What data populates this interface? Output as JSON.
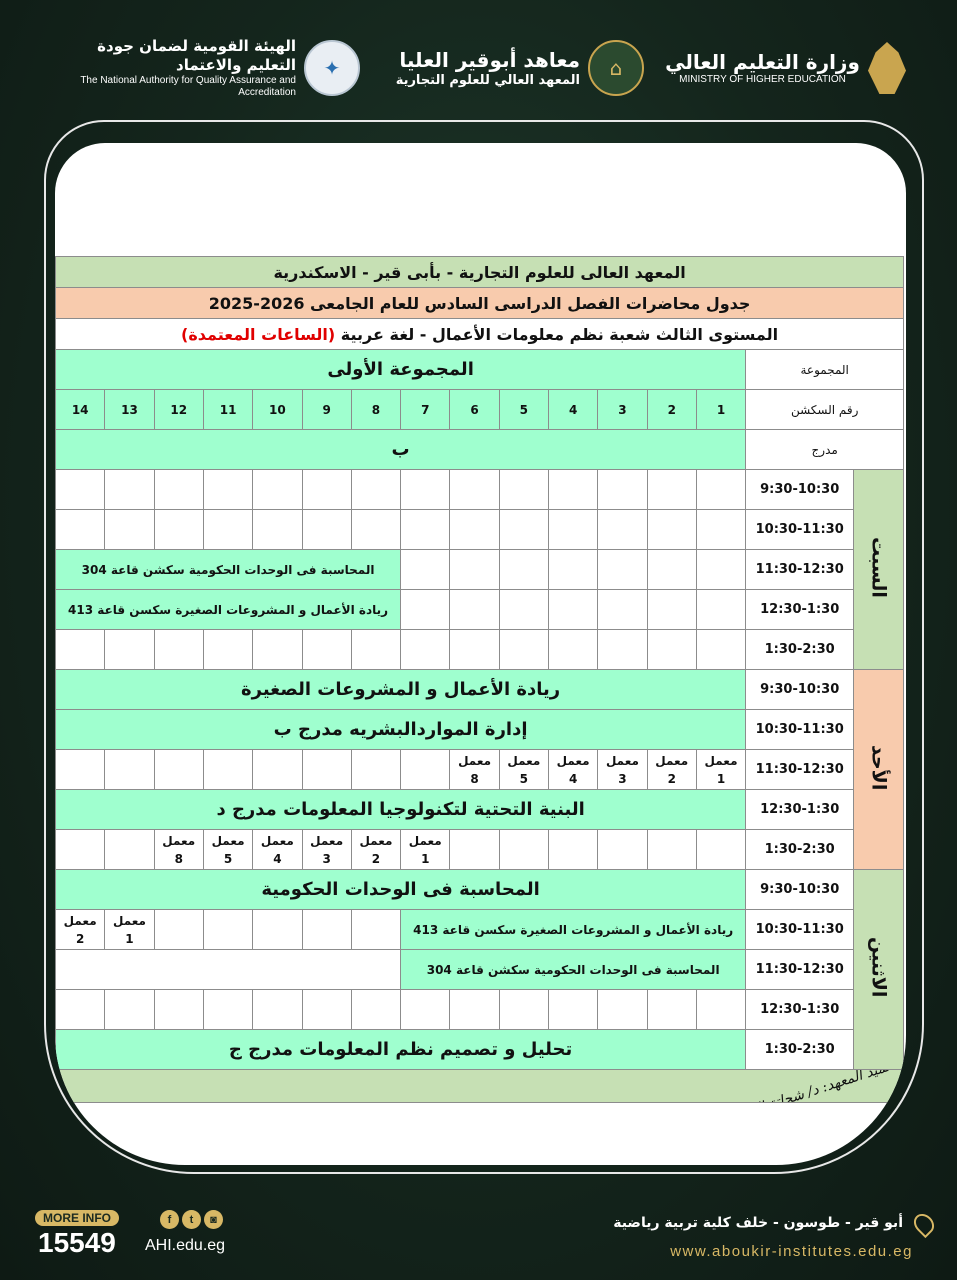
{
  "header": {
    "nqaa_ar": "الهيئة القومية لضمان جودة التعليم والاعتماد",
    "nqaa_en": "The National Authority for Quality Assurance and Accreditation",
    "institute_ar": "معاهد أبوقير العليا",
    "institute_sub": "المعهد العالي للعلوم التجارية",
    "ministry_ar": "وزارة التعليم العالي",
    "ministry_en": "MINISTRY OF HIGHER EDUCATION"
  },
  "titles": {
    "line1": "المعهد العالى للعلوم التجارية - بأبى قير - الاسكندرية",
    "line2": "جدول محاضرات الفصل الدراسى السادس  للعام الجامعى 2026-2025",
    "line3": "المستوى الثالث  شعبة نظم معلومات الأعمال -  لغة عربية ",
    "line3_red": "(الساعات المعتمدة)"
  },
  "table": {
    "group_label": "المجموعة",
    "group_value": "المجموعة الأولى",
    "section_label": "رقم السكشن",
    "sections": [
      "1",
      "2",
      "3",
      "4",
      "5",
      "6",
      "7",
      "8",
      "9",
      "10",
      "11",
      "12",
      "13",
      "14"
    ],
    "hall_label": "مدرج",
    "hall_value": "ب",
    "days": [
      {
        "name": "السبت",
        "color": "#c6e0b4",
        "rows": [
          {
            "time": "9:30-10:30",
            "cells": [
              {
                "e": 14
              }
            ]
          },
          {
            "time": "10:30-11:30",
            "cells": [
              {
                "e": 14
              }
            ]
          },
          {
            "time": "11:30-12:30",
            "cells": [
              {
                "e": 7
              },
              {
                "span": 7,
                "text": "المحاسبة فى الوحدات الحكومية  سكشن قاعة 304",
                "size": "sm"
              }
            ]
          },
          {
            "time": "12:30-1:30",
            "cells": [
              {
                "e": 7
              },
              {
                "span": 7,
                "text": "ريادة الأعمال و المشروعات الصغيرة    سكسن قاعة 413",
                "size": "sm"
              }
            ]
          },
          {
            "time": "1:30-2:30",
            "cells": [
              {
                "e": 14
              }
            ]
          }
        ]
      },
      {
        "name": "الأحد",
        "color": "#f8cbad",
        "rows": [
          {
            "time": "9:30-10:30",
            "cells": [
              {
                "span": 14,
                "text": "ريادة الأعمال و المشروعات الصغيرة",
                "size": "big"
              }
            ]
          },
          {
            "time": "10:30-11:30",
            "cells": [
              {
                "span": 14,
                "text": "إدارة المواردالبشريه مدرج ب",
                "size": "big"
              }
            ]
          },
          {
            "time": "11:30-12:30",
            "cells": [
              {
                "lab": "معمل",
                "n": "1"
              },
              {
                "lab": "معمل",
                "n": "2"
              },
              {
                "lab": "معمل",
                "n": "3"
              },
              {
                "lab": "معمل",
                "n": "4"
              },
              {
                "lab": "معمل",
                "n": "5"
              },
              {
                "lab": "معمل",
                "n": "8"
              },
              {
                "e": 8
              }
            ]
          },
          {
            "time": "12:30-1:30",
            "cells": [
              {
                "span": 14,
                "text": "البنية التحتية لتكنولوجيا المعلومات مدرج د",
                "size": "big"
              }
            ]
          },
          {
            "time": "1:30-2:30",
            "cells": [
              {
                "e": 6
              },
              {
                "lab": "معمل",
                "n": "1"
              },
              {
                "lab": "معمل",
                "n": "2"
              },
              {
                "lab": "معمل",
                "n": "3"
              },
              {
                "lab": "معمل",
                "n": "4"
              },
              {
                "lab": "معمل",
                "n": "5"
              },
              {
                "lab": "معمل",
                "n": "8"
              },
              {
                "e": 2
              }
            ]
          }
        ]
      },
      {
        "name": "الاثنين",
        "color": "#c6e0b4",
        "rows": [
          {
            "time": "9:30-10:30",
            "cells": [
              {
                "span": 14,
                "text": "المحاسبة فى الوحدات الحكومية",
                "size": "big"
              }
            ]
          },
          {
            "time": "10:30-11:30",
            "cells": [
              {
                "span": 7,
                "text": "ريادة الأعمال و المشروعات الصغيرة    سكسن قاعة 413",
                "size": "sm"
              },
              {
                "e": 5
              },
              {
                "lab": "معمل",
                "n": "1"
              },
              {
                "lab": "معمل",
                "n": "2"
              }
            ]
          },
          {
            "time": "11:30-12:30",
            "cells": [
              {
                "span": 7,
                "text": "المحاسبة فى الوحدات الحكومية  سكشن قاعة 304",
                "size": "sm"
              },
              {
                "blank": 7
              }
            ]
          },
          {
            "time": "12:30-1:30",
            "cells": [
              {
                "e": 14
              }
            ]
          },
          {
            "time": "1:30-2:30",
            "cells": [
              {
                "span": 14,
                "text": "تحليل و تصميم نظم المعلومات مدرج ج",
                "size": "big"
              }
            ]
          }
        ]
      }
    ],
    "signature": "عميد المعهد: د/ شحاتة السيد"
  },
  "footer": {
    "more_info": "MORE INFO",
    "phone": "15549",
    "site_short": "AHI.edu.eg",
    "address": "أبو قير - طوسون - خلف كلية تربية رياضية",
    "website": "www.aboukir-institutes.edu.eg",
    "social": [
      "facebook",
      "twitter",
      "instagram"
    ]
  },
  "colors": {
    "mint": "#9fffcf",
    "title_green": "#c6e0b4",
    "title_peach": "#f8cbad",
    "accent_red": "#e00000",
    "gold": "#d8b865"
  }
}
